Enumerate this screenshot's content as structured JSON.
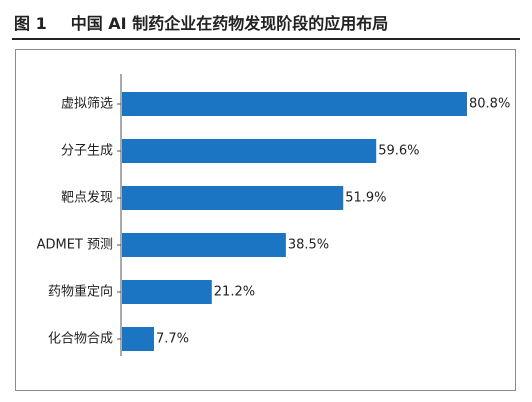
{
  "figure": {
    "number": "图 1",
    "title": "中国 AI 制药企业在药物发现阶段的应用布局"
  },
  "chart_data": {
    "type": "bar",
    "orientation": "horizontal",
    "title": "中国 AI 制药企业在药物发现阶段的应用布局",
    "categories": [
      "虚拟筛选",
      "分子生成",
      "靶点发现",
      "ADMET 预测",
      "药物重定向",
      "化合物合成"
    ],
    "values": [
      80.8,
      59.6,
      51.9,
      38.5,
      21.2,
      7.7
    ],
    "value_labels": [
      "80.8%",
      "59.6%",
      "51.9%",
      "38.5%",
      "21.2%",
      "7.7%"
    ],
    "unit": "%",
    "xlim": [
      0,
      80.8
    ],
    "grid": false,
    "legend": "none",
    "bar_color": "#1b75c2"
  }
}
